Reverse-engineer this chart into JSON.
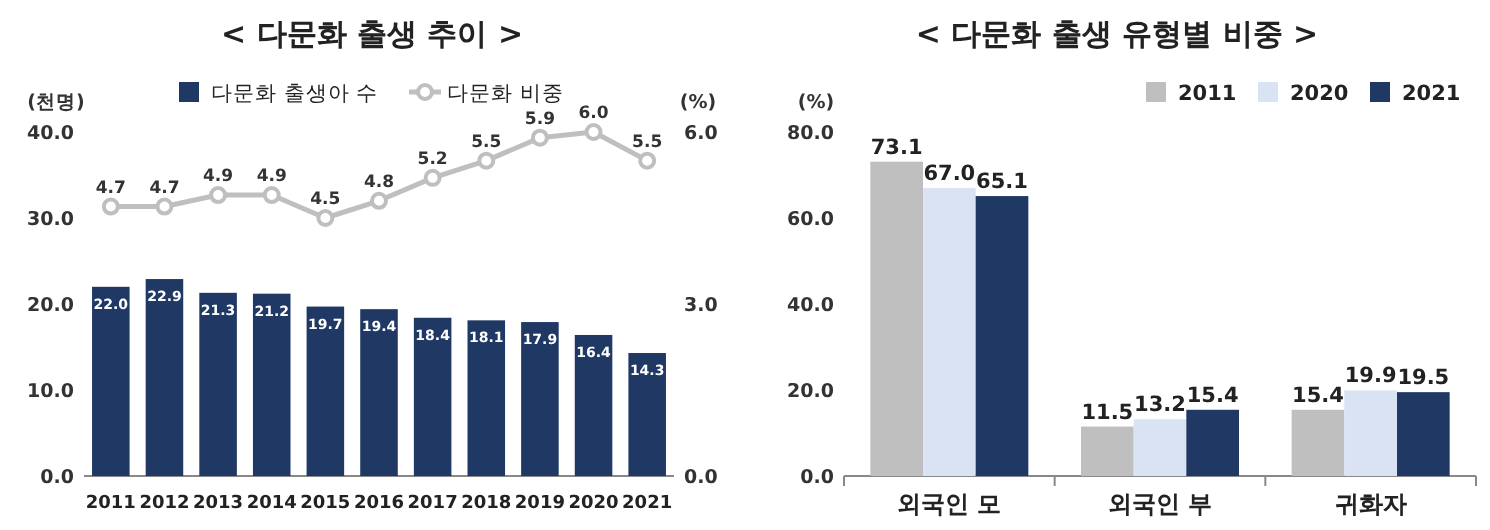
{
  "chart_data": [
    {
      "type": "bar",
      "title": "< 다문화 출생 추이 >",
      "categories": [
        "2011",
        "2012",
        "2013",
        "2014",
        "2015",
        "2016",
        "2017",
        "2018",
        "2019",
        "2020",
        "2021"
      ],
      "ylabel": "(천명)",
      "y2label": "(%)",
      "ylim": [
        0,
        40
      ],
      "yticks": [
        {
          "value": 0,
          "label": "0.0"
        },
        {
          "value": 10,
          "label": "10.0"
        },
        {
          "value": 20,
          "label": "20.0"
        },
        {
          "value": 30,
          "label": "30.0"
        },
        {
          "value": 40,
          "label": "40.0"
        }
      ],
      "y2lim": [
        0,
        6
      ],
      "y2ticks": [
        {
          "value": 0,
          "label": "0.0"
        },
        {
          "value": 3,
          "label": "3.0"
        },
        {
          "value": 6,
          "label": "6.0"
        }
      ],
      "legend": "top",
      "marker": "circle",
      "series": [
        {
          "name": "다문화 출생아 수",
          "type": "bar",
          "color": "#1f3864",
          "values": [
            22.0,
            22.9,
            21.3,
            21.2,
            19.7,
            19.4,
            18.4,
            18.1,
            17.9,
            16.4,
            14.3
          ],
          "value_labels": [
            "22.0",
            "22.9",
            "21.3",
            "21.2",
            "19.7",
            "19.4",
            "18.4",
            "18.1",
            "17.9",
            "16.4",
            "14.3"
          ]
        },
        {
          "name": "다문화 비중",
          "type": "line",
          "axis": "y2",
          "color": "#bfbfbf",
          "values": [
            4.7,
            4.7,
            4.9,
            4.9,
            4.5,
            4.8,
            5.2,
            5.5,
            5.9,
            6.0,
            5.5
          ],
          "value_labels": [
            "4.7",
            "4.7",
            "4.9",
            "4.9",
            "4.5",
            "4.8",
            "5.2",
            "5.5",
            "5.9",
            "6.0",
            "5.5"
          ]
        }
      ]
    },
    {
      "type": "bar",
      "title": "< 다문화 출생 유형별 비중 >",
      "categories": [
        "외국인 모",
        "외국인 부",
        "귀화자"
      ],
      "ylabel": "(%)",
      "ylim": [
        0,
        80
      ],
      "yticks": [
        {
          "value": 0,
          "label": "0.0"
        },
        {
          "value": 20,
          "label": "20.0"
        },
        {
          "value": 40,
          "label": "40.0"
        },
        {
          "value": 60,
          "label": "60.0"
        },
        {
          "value": 80,
          "label": "80.0"
        }
      ],
      "legend": "top right",
      "series": [
        {
          "name": "2011",
          "color": "#bfbfbf",
          "values": [
            73.1,
            11.5,
            15.4
          ],
          "value_labels": [
            "73.1",
            "11.5",
            "15.4"
          ]
        },
        {
          "name": "2020",
          "color": "#dae3f3",
          "values": [
            67.0,
            13.2,
            19.9
          ],
          "value_labels": [
            "67.0",
            "13.2",
            "19.9"
          ]
        },
        {
          "name": "2021",
          "color": "#203864",
          "values": [
            65.1,
            15.4,
            19.5
          ],
          "value_labels": [
            "65.1",
            "15.4",
            "19.5"
          ]
        }
      ]
    }
  ]
}
